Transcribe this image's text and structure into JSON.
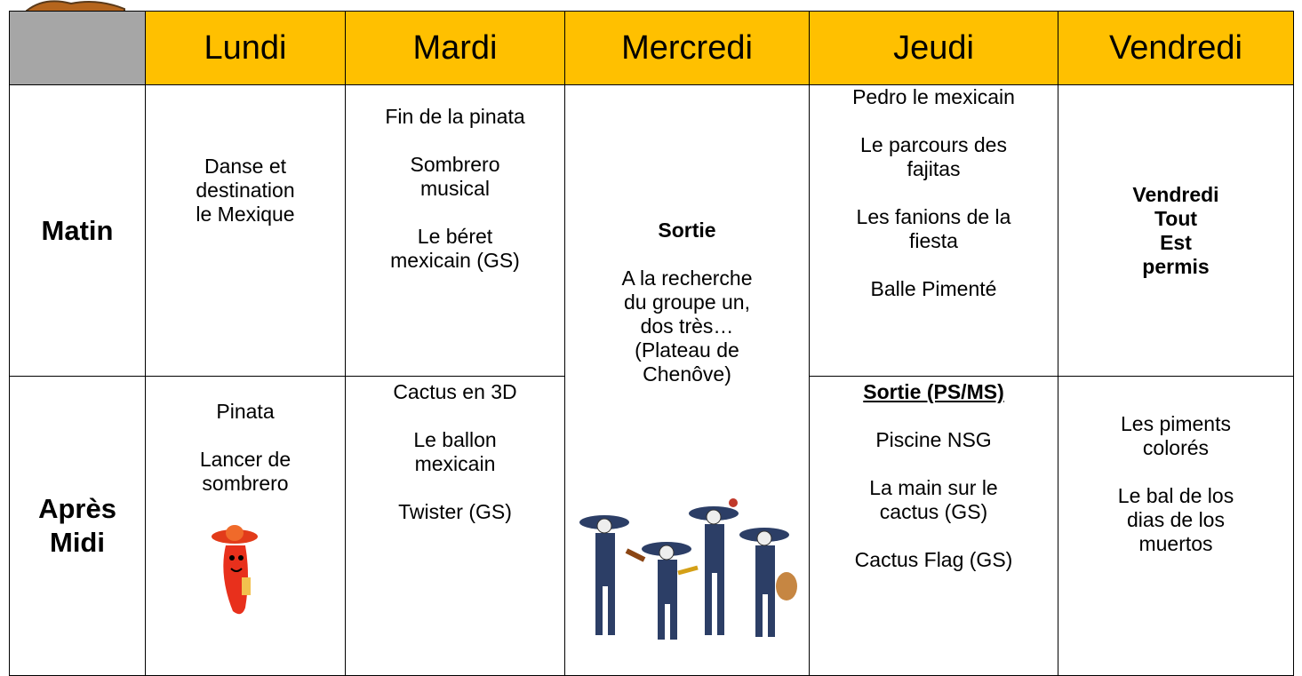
{
  "header": {
    "days": [
      "Lundi",
      "Mardi",
      "Mercredi",
      "Jeudi",
      "Vendredi"
    ]
  },
  "rows": [
    {
      "label": [
        "Matin"
      ],
      "cells": [
        [
          {
            "lines": [
              "Danse et",
              "destination",
              "le Mexique"
            ]
          }
        ],
        [
          {
            "lines": [
              "Fin de la pinata"
            ]
          },
          {
            "lines": [
              "Sombrero",
              "musical"
            ]
          },
          {
            "lines": [
              "Le béret",
              "mexicain (GS)"
            ]
          }
        ],
        [
          {
            "lines": [
              "Sortie"
            ],
            "bold": true
          },
          {
            "lines": [
              "A la recherche",
              "du groupe un,",
              "dos très…",
              "(Plateau de",
              "Chenôve)"
            ]
          }
        ],
        [
          {
            "lines": [
              "Pedro le mexicain"
            ]
          },
          {
            "lines": [
              "Le parcours des",
              "fajitas"
            ]
          },
          {
            "lines": [
              "Les fanions de la",
              "fiesta"
            ]
          },
          {
            "lines": [
              "Balle Pimenté"
            ]
          }
        ],
        [
          {
            "lines": [
              "Vendredi",
              "Tout",
              "Est",
              "permis"
            ],
            "bold": true
          }
        ]
      ]
    },
    {
      "label": [
        "Après",
        "Midi"
      ],
      "cells": [
        [
          {
            "lines": [
              "Pinata"
            ]
          },
          {
            "lines": [
              "Lancer de",
              "sombrero"
            ]
          }
        ],
        [
          {
            "lines": [
              "Cactus en 3D"
            ]
          },
          {
            "lines": [
              "Le ballon",
              "mexicain"
            ]
          },
          {
            "lines": [
              "Twister (GS)"
            ]
          }
        ],
        null,
        [
          {
            "lines": [
              "Sortie (PS/MS)"
            ],
            "bold": true,
            "underline": true
          },
          {
            "lines": [
              "Piscine NSG"
            ]
          },
          {
            "lines": [
              "La main sur le",
              "cactus (GS)"
            ]
          },
          {
            "lines": [
              "Cactus Flag (GS)"
            ]
          }
        ],
        [
          {
            "lines": [
              "Les piments",
              "colorés"
            ]
          },
          {
            "lines": [
              "Le bal de los",
              "dias de los",
              "muertos"
            ]
          }
        ]
      ]
    }
  ]
}
